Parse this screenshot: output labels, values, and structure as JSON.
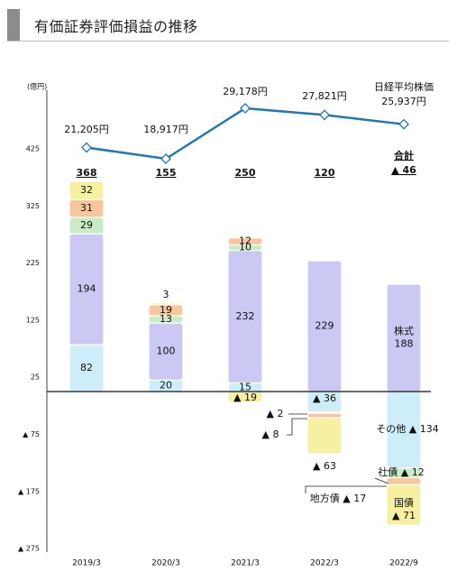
{
  "title": "有価証券評価損益の推移",
  "chart_data": {
    "type": "bar",
    "y_unit": "(億円)",
    "ylim": [
      -275,
      475
    ],
    "yticks": [
      {
        "value": 425,
        "label": "425"
      },
      {
        "value": 325,
        "label": "325"
      },
      {
        "value": 225,
        "label": "225"
      },
      {
        "value": 125,
        "label": "125"
      },
      {
        "value": 25,
        "label": "25"
      },
      {
        "value": -75,
        "label": "▲ 75"
      },
      {
        "value": -175,
        "label": "▲ 175"
      },
      {
        "value": -275,
        "label": "▲ 275"
      }
    ],
    "categories": [
      "2019/3",
      "2020/3",
      "2021/3",
      "2022/3",
      "2022/9"
    ],
    "series": [
      {
        "key": "other",
        "color": "#cdeef8",
        "values": [
          82,
          20,
          15,
          -36,
          -134
        ],
        "labels": [
          "82",
          "20",
          "15",
          "▲ 36",
          "その他 ▲ 134"
        ]
      },
      {
        "key": "stock",
        "color": "#cbc8f3",
        "values": [
          194,
          100,
          232,
          229,
          188
        ],
        "labels": [
          "194",
          "100",
          "232",
          "229",
          "株式\n188"
        ]
      },
      {
        "key": "chihosai",
        "color": "#c9ecc6",
        "values": [
          29,
          13,
          10,
          -2,
          -17
        ],
        "labels": [
          "29",
          "13",
          "10",
          "▲ 2",
          "地方債 ▲ 17"
        ]
      },
      {
        "key": "shasai",
        "color": "#f6c79e",
        "values": [
          31,
          19,
          12,
          -8,
          -12
        ],
        "labels": [
          "31",
          "19",
          "12",
          "▲ 8",
          "社債 ▲ 12"
        ]
      },
      {
        "key": "kokusai",
        "color": "#f7f0a0",
        "values": [
          32,
          3,
          -19,
          -63,
          -71
        ],
        "labels": [
          "32",
          "3",
          "▲ 19",
          "▲ 63",
          "国債\n▲ 71"
        ]
      }
    ],
    "totals": [
      "368",
      "155",
      "250",
      "120",
      "▲ 46"
    ],
    "total_heading": "合計",
    "nikkei": {
      "name": "日経平均株価",
      "values": [
        21205,
        18917,
        29178,
        27821,
        25937
      ],
      "labels": [
        "21,205円",
        "18,917円",
        "29,178円",
        "27,821円",
        "25,937円"
      ],
      "color": "#1f77b4"
    }
  }
}
